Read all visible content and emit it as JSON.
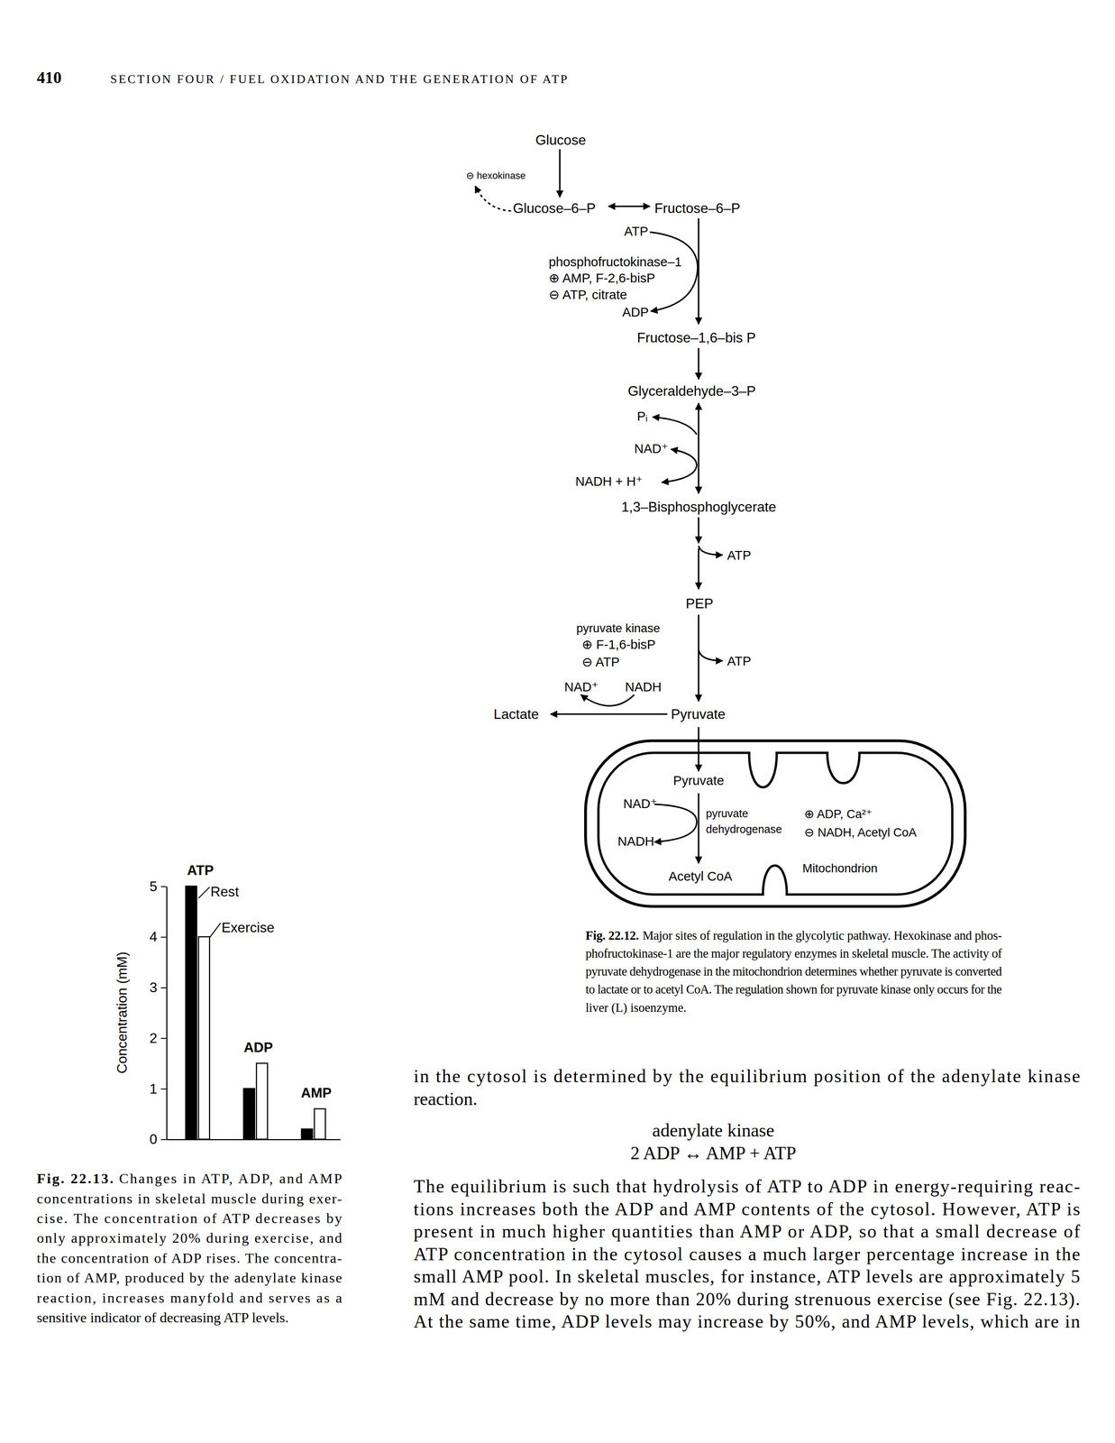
{
  "header": {
    "page_number": "410",
    "running_head": "SECTION FOUR / FUEL OXIDATION AND THE GENERATION OF ATP"
  },
  "diagram": {
    "labels": {
      "glucose": "Glucose",
      "hexokinase": "⊖ hexokinase",
      "g6p": "Glucose–6–P",
      "f6p": "Fructose–6–P",
      "pfk_atp_in": "ATP",
      "pfk_name": "phosphofructokinase–1",
      "pfk_activators": "⊕ AMP, F-2,6-bisP",
      "pfk_inhibitors": "⊖ ATP, citrate",
      "pfk_adp_out": "ADP",
      "f16bp": "Fructose–1,6–bis P",
      "gap": "Glyceraldehyde–3–P",
      "gapdh_pi": "Pᵢ",
      "gapdh_nad": "NAD⁺",
      "gapdh_nadh": "NADH + H⁺",
      "bpg": "1,3–Bisphosphoglycerate",
      "pgk_atp": "ATP",
      "pep": "PEP",
      "pk_name": "pyruvate kinase",
      "pk_activator": "⊕ F-1,6-bisP",
      "pk_inhibitor": "⊖ ATP",
      "pk_atp": "ATP",
      "ldh_nad": "NAD⁺",
      "ldh_nadh": "NADH",
      "lactate": "Lactate",
      "pyruvate": "Pyruvate",
      "mito_pyruvate": "Pyruvate",
      "pdh_nad": "NAD⁺",
      "pdh_nadh": "NADH",
      "pdh_name_1": "pyruvate",
      "pdh_name_2": "dehydrogenase",
      "pdh_activators": "⊕ ADP, Ca²⁺",
      "pdh_inhibitors": "⊖ NADH, Acetyl CoA",
      "acetyl_coa": "Acetyl CoA",
      "mitochondrion": "Mitochondrion"
    }
  },
  "figure_22_12_caption": {
    "label": "Fig. 22.12.",
    "lines": [
      "Major sites of regulation in the glycolytic pathway. Hexokinase and phos-",
      "phofructokinase-1 are the major regulatory enzymes in skeletal muscle. The activity of",
      "pyruvate dehydrogenase in the mitochondrion determines whether pyruvate is converted",
      "to lactate or to acetyl CoA. The regulation shown for pyruvate kinase only occurs for the",
      "liver (L) isoenzyme."
    ]
  },
  "chart_data": {
    "type": "bar",
    "y_label": "Concentration (mM)",
    "categories": [
      "ATP",
      "ADP",
      "AMP"
    ],
    "series": [
      {
        "name": "Rest",
        "color": "#000000",
        "values": [
          5,
          1,
          0.2
        ]
      },
      {
        "name": "Exercise",
        "color": "#ffffff",
        "values": [
          4,
          1.5,
          0.6
        ]
      }
    ],
    "ylim": [
      0,
      5
    ],
    "yticks": [
      0,
      1,
      2,
      3,
      4,
      5
    ]
  },
  "figure_22_13_caption": {
    "label": "Fig. 22.13.",
    "lines": [
      "Changes in ATP, ADP, and AMP",
      "concentrations in skeletal muscle during exer-",
      "cise. The concentration of ATP decreases by",
      "only approximately 20% during exercise, and",
      "the concentration of ADP rises. The concentra-",
      "tion of AMP, produced by the adenylate kinase",
      "reaction, increases manyfold and serves as a",
      "sensitive indicator of decreasing ATP levels."
    ]
  },
  "body": {
    "paragraph_1": [
      "in the cytosol is determined by the equilibrium position of the adenylate kinase",
      "reaction."
    ],
    "equation": {
      "enzyme": "adenylate kinase",
      "reaction": "2 ADP ↔ AMP + ATP"
    },
    "paragraph_2": [
      "The equilibrium is such that hydrolysis of ATP to ADP in energy-requiring reac-",
      "tions increases both the ADP and AMP contents of the cytosol. However, ATP is",
      "present in much higher quantities than AMP or ADP, so that a small decrease of",
      "ATP concentration in the cytosol causes a much larger percentage increase in the",
      "small AMP pool. In skeletal muscles, for instance, ATP levels are approximately 5",
      "mM and decrease by no more than 20% during strenuous exercise (see Fig. 22.13).",
      "At the same time, ADP levels may increase by 50%, and AMP levels, which are in"
    ]
  }
}
